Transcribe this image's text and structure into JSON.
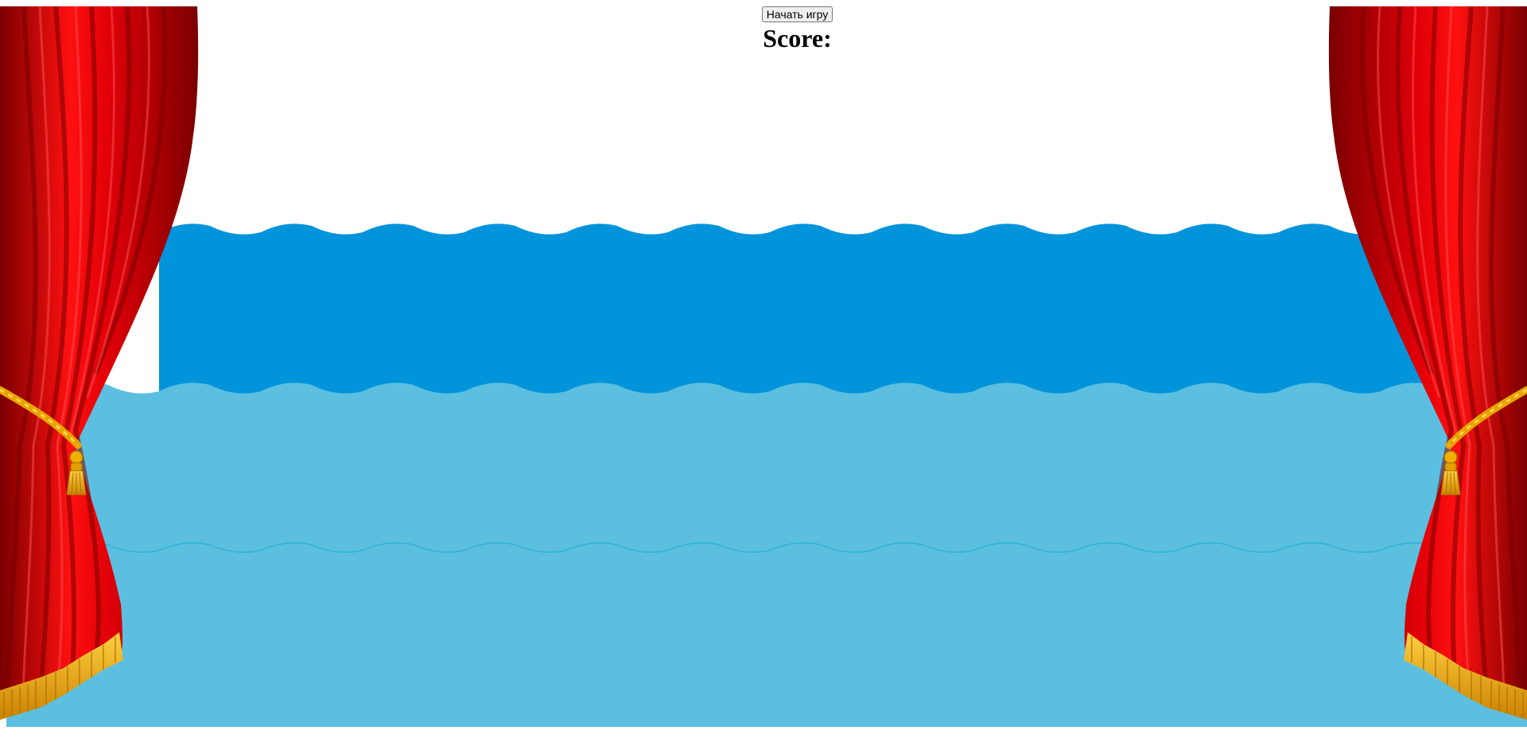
{
  "game": {
    "start_button_label": "Начать игру",
    "score_label": "Score:",
    "score_value": ""
  },
  "scene": {
    "colors": {
      "background": "#ffffff",
      "water_dark": "#0294db",
      "water_light": "#5cbfe0",
      "wave_line": "#2ab3d8",
      "curtain_red": "#e8000a",
      "curtain_dark": "#8a0000",
      "tassel_gold": "#f0a800"
    },
    "icons": [
      "curtain-left",
      "curtain-right",
      "tassel-icon",
      "wave-layer"
    ]
  }
}
